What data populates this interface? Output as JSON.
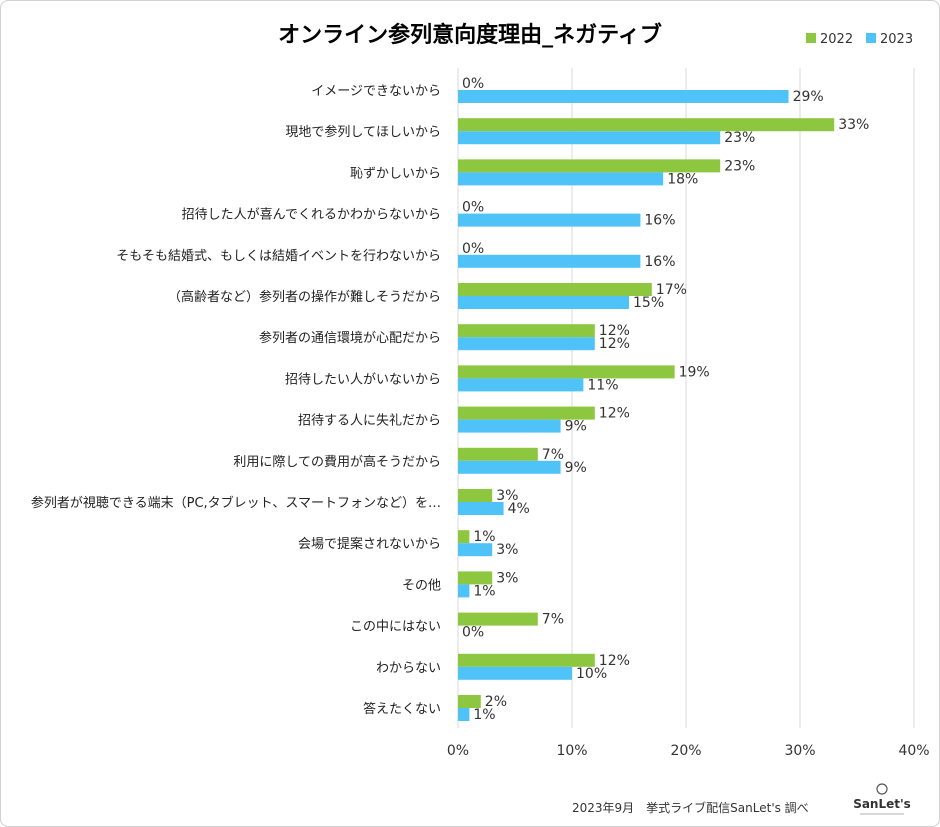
{
  "chart_data": {
    "type": "bar",
    "orientation": "horizontal",
    "title": "オンライン参列意向度理由_ネガティブ",
    "categories": [
      "イメージできないから",
      "現地で参列してほしいから",
      "恥ずかしいから",
      "招待した人が喜んでくれるかわからないから",
      "そもそも結婚式、もしくは結婚イベントを行わないから",
      "（高齢者など）参列者の操作が難しそうだから",
      "参列者の通信環境が心配だから",
      "招待したい人がいないから",
      "招待する人に失礼だから",
      "利用に際しての費用が高そうだから",
      "参列者が視聴できる端末（PC,タブレット、スマートフォンなど）を…",
      "会場で提案されないから",
      "その他",
      "この中にはない",
      "わからない",
      "答えたくない"
    ],
    "series": [
      {
        "name": "2022",
        "color": "#8dc63f",
        "values": [
          0,
          33,
          23,
          0,
          0,
          17,
          12,
          19,
          12,
          7,
          3,
          1,
          3,
          7,
          12,
          2
        ]
      },
      {
        "name": "2023",
        "color": "#4fc3f7",
        "values": [
          29,
          23,
          18,
          16,
          16,
          15,
          12,
          11,
          9,
          9,
          4,
          3,
          1,
          0,
          10,
          1
        ]
      }
    ],
    "xlim": [
      0,
      40
    ],
    "xticks": [
      "0%",
      "10%",
      "20%",
      "30%",
      "40%"
    ],
    "value_format": "percent",
    "grid": "vertical",
    "legend_position": "top-right",
    "xlabel": "",
    "ylabel": ""
  },
  "footer": {
    "source": "2023年9月　挙式ライブ配信SanLet's 調べ",
    "logo_text": "SanLet's"
  }
}
